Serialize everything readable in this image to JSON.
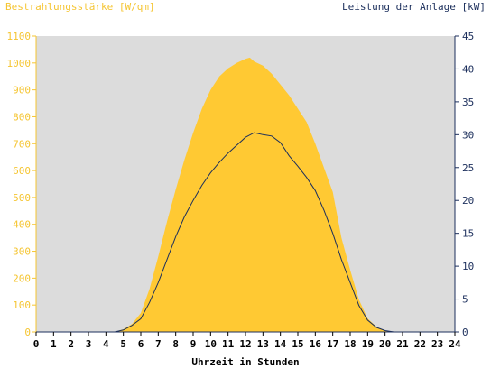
{
  "chart_data": {
    "type": "area",
    "title_left": "Bestrahlungsstärke [W/qm]",
    "title_right": "Leistung der Anlage [kW]",
    "xlabel": "Uhrzeit in Stunden",
    "xlim": [
      0,
      24
    ],
    "x_ticks": [
      "0",
      "1",
      "2",
      "3",
      "4",
      "5",
      "6",
      "7",
      "8",
      "9",
      "10",
      "11",
      "12",
      "13",
      "14",
      "15",
      "16",
      "17",
      "18",
      "19",
      "20",
      "21",
      "22",
      "23",
      "24"
    ],
    "y_left": {
      "lim": [
        0,
        1100
      ],
      "ticks": [
        "0",
        "100",
        "200",
        "300",
        "400",
        "500",
        "600",
        "700",
        "800",
        "900",
        "1000",
        "1100"
      ]
    },
    "y_right": {
      "lim": [
        0,
        45
      ],
      "ticks": [
        "0",
        "5",
        "10",
        "15",
        "20",
        "25",
        "30",
        "35",
        "40",
        "45"
      ]
    },
    "grid": false,
    "colors": {
      "irradiance": "#ffc933",
      "power": "#1c2f5c",
      "plot_bg": "#dcdcdc",
      "left_axis_text": "#f5c532",
      "right_axis_text": "#1c2f5c"
    },
    "series": [
      {
        "name": "Bestrahlungsstärke",
        "axis": "left",
        "x": [
          0,
          4.5,
          5,
          5.5,
          6,
          6.5,
          7,
          7.5,
          8,
          8.5,
          9,
          9.5,
          10,
          10.5,
          11,
          11.5,
          12,
          12.25,
          12.5,
          13,
          13.5,
          14,
          14.5,
          15,
          15.5,
          16,
          16.5,
          17,
          17.5,
          18,
          18.5,
          19,
          19.5,
          20,
          20.5,
          24
        ],
        "values": [
          0,
          0,
          10,
          30,
          70,
          160,
          280,
          410,
          530,
          640,
          740,
          830,
          900,
          950,
          980,
          1000,
          1015,
          1020,
          1005,
          990,
          960,
          920,
          880,
          830,
          780,
          700,
          610,
          520,
          350,
          230,
          120,
          50,
          20,
          5,
          0,
          0
        ]
      },
      {
        "name": "Leistung der Anlage",
        "axis": "right",
        "x": [
          0,
          4.5,
          5,
          5.5,
          6,
          6.5,
          7,
          7.5,
          8,
          8.5,
          9,
          9.5,
          10,
          10.5,
          11,
          11.5,
          12,
          12.5,
          13,
          13.5,
          14,
          14.5,
          15,
          15.5,
          16,
          16.5,
          17,
          17.5,
          18,
          18.5,
          19,
          19.5,
          20,
          20.5,
          24
        ],
        "values": [
          0,
          0,
          0.3,
          1,
          2,
          4.5,
          7.5,
          11,
          14.5,
          17.5,
          20,
          22.3,
          24.2,
          25.8,
          27.2,
          28.4,
          29.6,
          30.3,
          30,
          29.8,
          28.8,
          26.8,
          25.2,
          23.5,
          21.5,
          18.5,
          15,
          11,
          7.5,
          4,
          1.8,
          0.7,
          0.2,
          0,
          0
        ]
      }
    ]
  }
}
